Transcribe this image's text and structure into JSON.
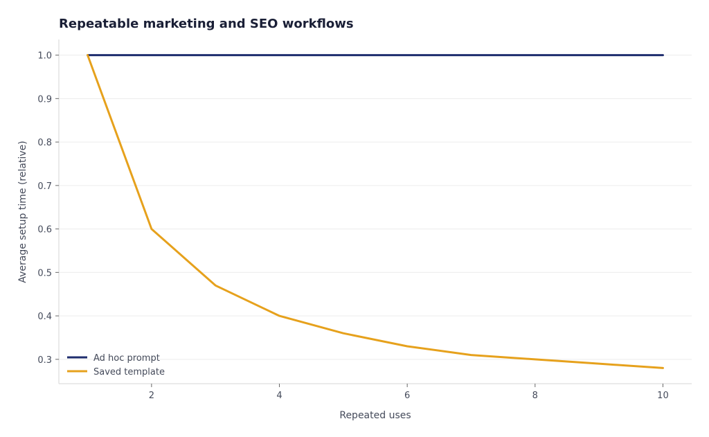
{
  "chart_data": {
    "type": "line",
    "title": "Repeatable marketing and SEO workflows",
    "xlabel": "Repeated uses",
    "ylabel": "Average setup time (relative)",
    "xlim": [
      0.55,
      10.45
    ],
    "ylim": [
      0.244,
      1.036
    ],
    "xticks": [
      2,
      4,
      6,
      8,
      10
    ],
    "yticks": [
      0.3,
      0.4,
      0.5,
      0.6,
      0.7,
      0.8,
      0.9,
      1.0
    ],
    "xtick_labels": [
      "2",
      "4",
      "6",
      "8",
      "10"
    ],
    "ytick_labels": [
      "0.3",
      "0.4",
      "0.5",
      "0.6",
      "0.7",
      "0.8",
      "0.9",
      "1.0"
    ],
    "grid": "horizontal",
    "legend": "bottom-left",
    "x": [
      1,
      2,
      3,
      4,
      5,
      6,
      7,
      8,
      9,
      10
    ],
    "series": [
      {
        "name": "Ad hoc prompt",
        "color": "#1f2d6e",
        "values": [
          1.0,
          1.0,
          1.0,
          1.0,
          1.0,
          1.0,
          1.0,
          1.0,
          1.0,
          1.0
        ]
      },
      {
        "name": "Saved template",
        "color": "#e6a11c",
        "values": [
          1.0,
          0.6,
          0.47,
          0.4,
          0.36,
          0.33,
          0.31,
          0.3,
          0.29,
          0.28
        ]
      }
    ]
  }
}
